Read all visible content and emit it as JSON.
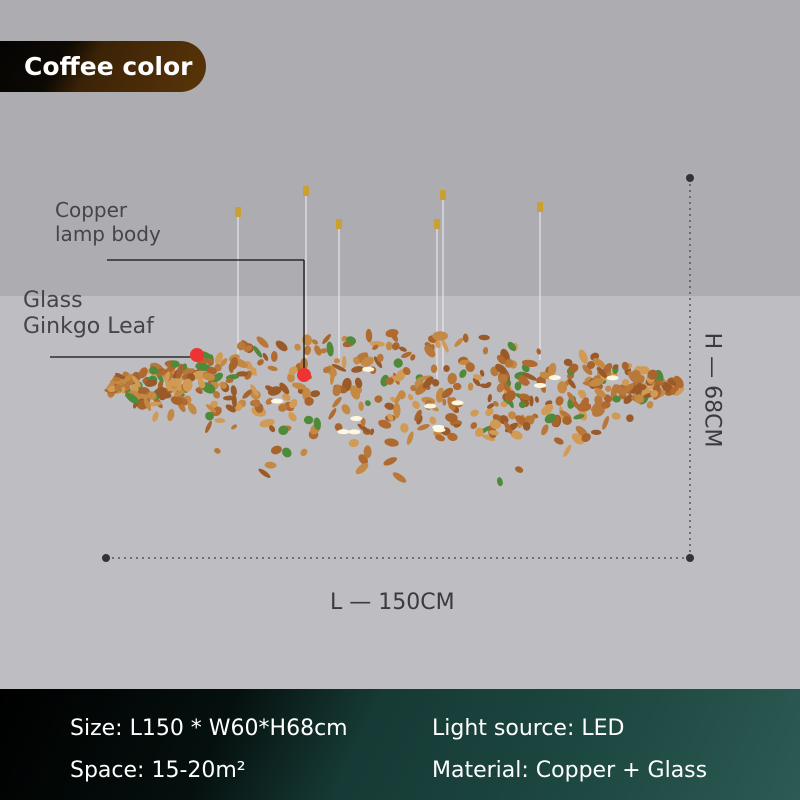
{
  "badge": {
    "label": "Coffee color",
    "color": "#5a3509"
  },
  "callouts": {
    "body": [
      "Copper",
      "lamp body"
    ],
    "leaf": [
      "Glass",
      "Ginkgo Leaf"
    ],
    "marker_color": "#ee3333"
  },
  "dimensions": {
    "length": "L — 150CM",
    "height": "H — 68CM"
  },
  "specs": {
    "size": "Size: L150 * W60*H68cm",
    "light_source": "Light source: LED",
    "space": "Space: 15-20m²",
    "material": "Material: Copper + Glass"
  }
}
